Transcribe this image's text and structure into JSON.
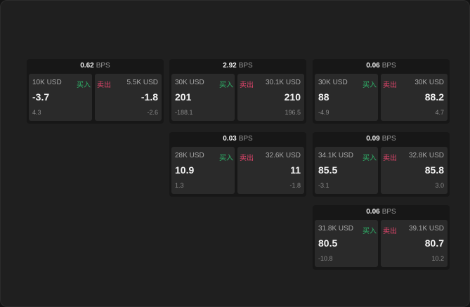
{
  "unit": "BPS",
  "buy_label": "买入",
  "sell_label": "卖出",
  "colors": {
    "buy": "#2fb56a",
    "sell": "#e0456b"
  },
  "cards": [
    {
      "spread": "0.62",
      "buy": {
        "amount": "10K USD",
        "price": "-3.7",
        "change": "4.3"
      },
      "sell": {
        "amount": "5.5K USD",
        "price": "-1.8",
        "change": "-2.6"
      }
    },
    {
      "spread": "2.92",
      "buy": {
        "amount": "30K USD",
        "price": "201",
        "change": "-188.1"
      },
      "sell": {
        "amount": "30.1K USD",
        "price": "210",
        "change": "196.5"
      }
    },
    {
      "spread": "0.06",
      "buy": {
        "amount": "30K USD",
        "price": "88",
        "change": "-4.9"
      },
      "sell": {
        "amount": "30K USD",
        "price": "88.2",
        "change": "4.7"
      }
    },
    {
      "spread": "0.03",
      "buy": {
        "amount": "28K USD",
        "price": "10.9",
        "change": "1.3"
      },
      "sell": {
        "amount": "32.6K USD",
        "price": "11",
        "change": "-1.8"
      }
    },
    {
      "spread": "0.09",
      "buy": {
        "amount": "34.1K USD",
        "price": "85.5",
        "change": "-3.1"
      },
      "sell": {
        "amount": "32.8K USD",
        "price": "85.8",
        "change": "3.0"
      }
    },
    {
      "spread": "0.06",
      "buy": {
        "amount": "31.8K USD",
        "price": "80.5",
        "change": "-10.8"
      },
      "sell": {
        "amount": "39.1K USD",
        "price": "80.7",
        "change": "10.2"
      }
    }
  ]
}
